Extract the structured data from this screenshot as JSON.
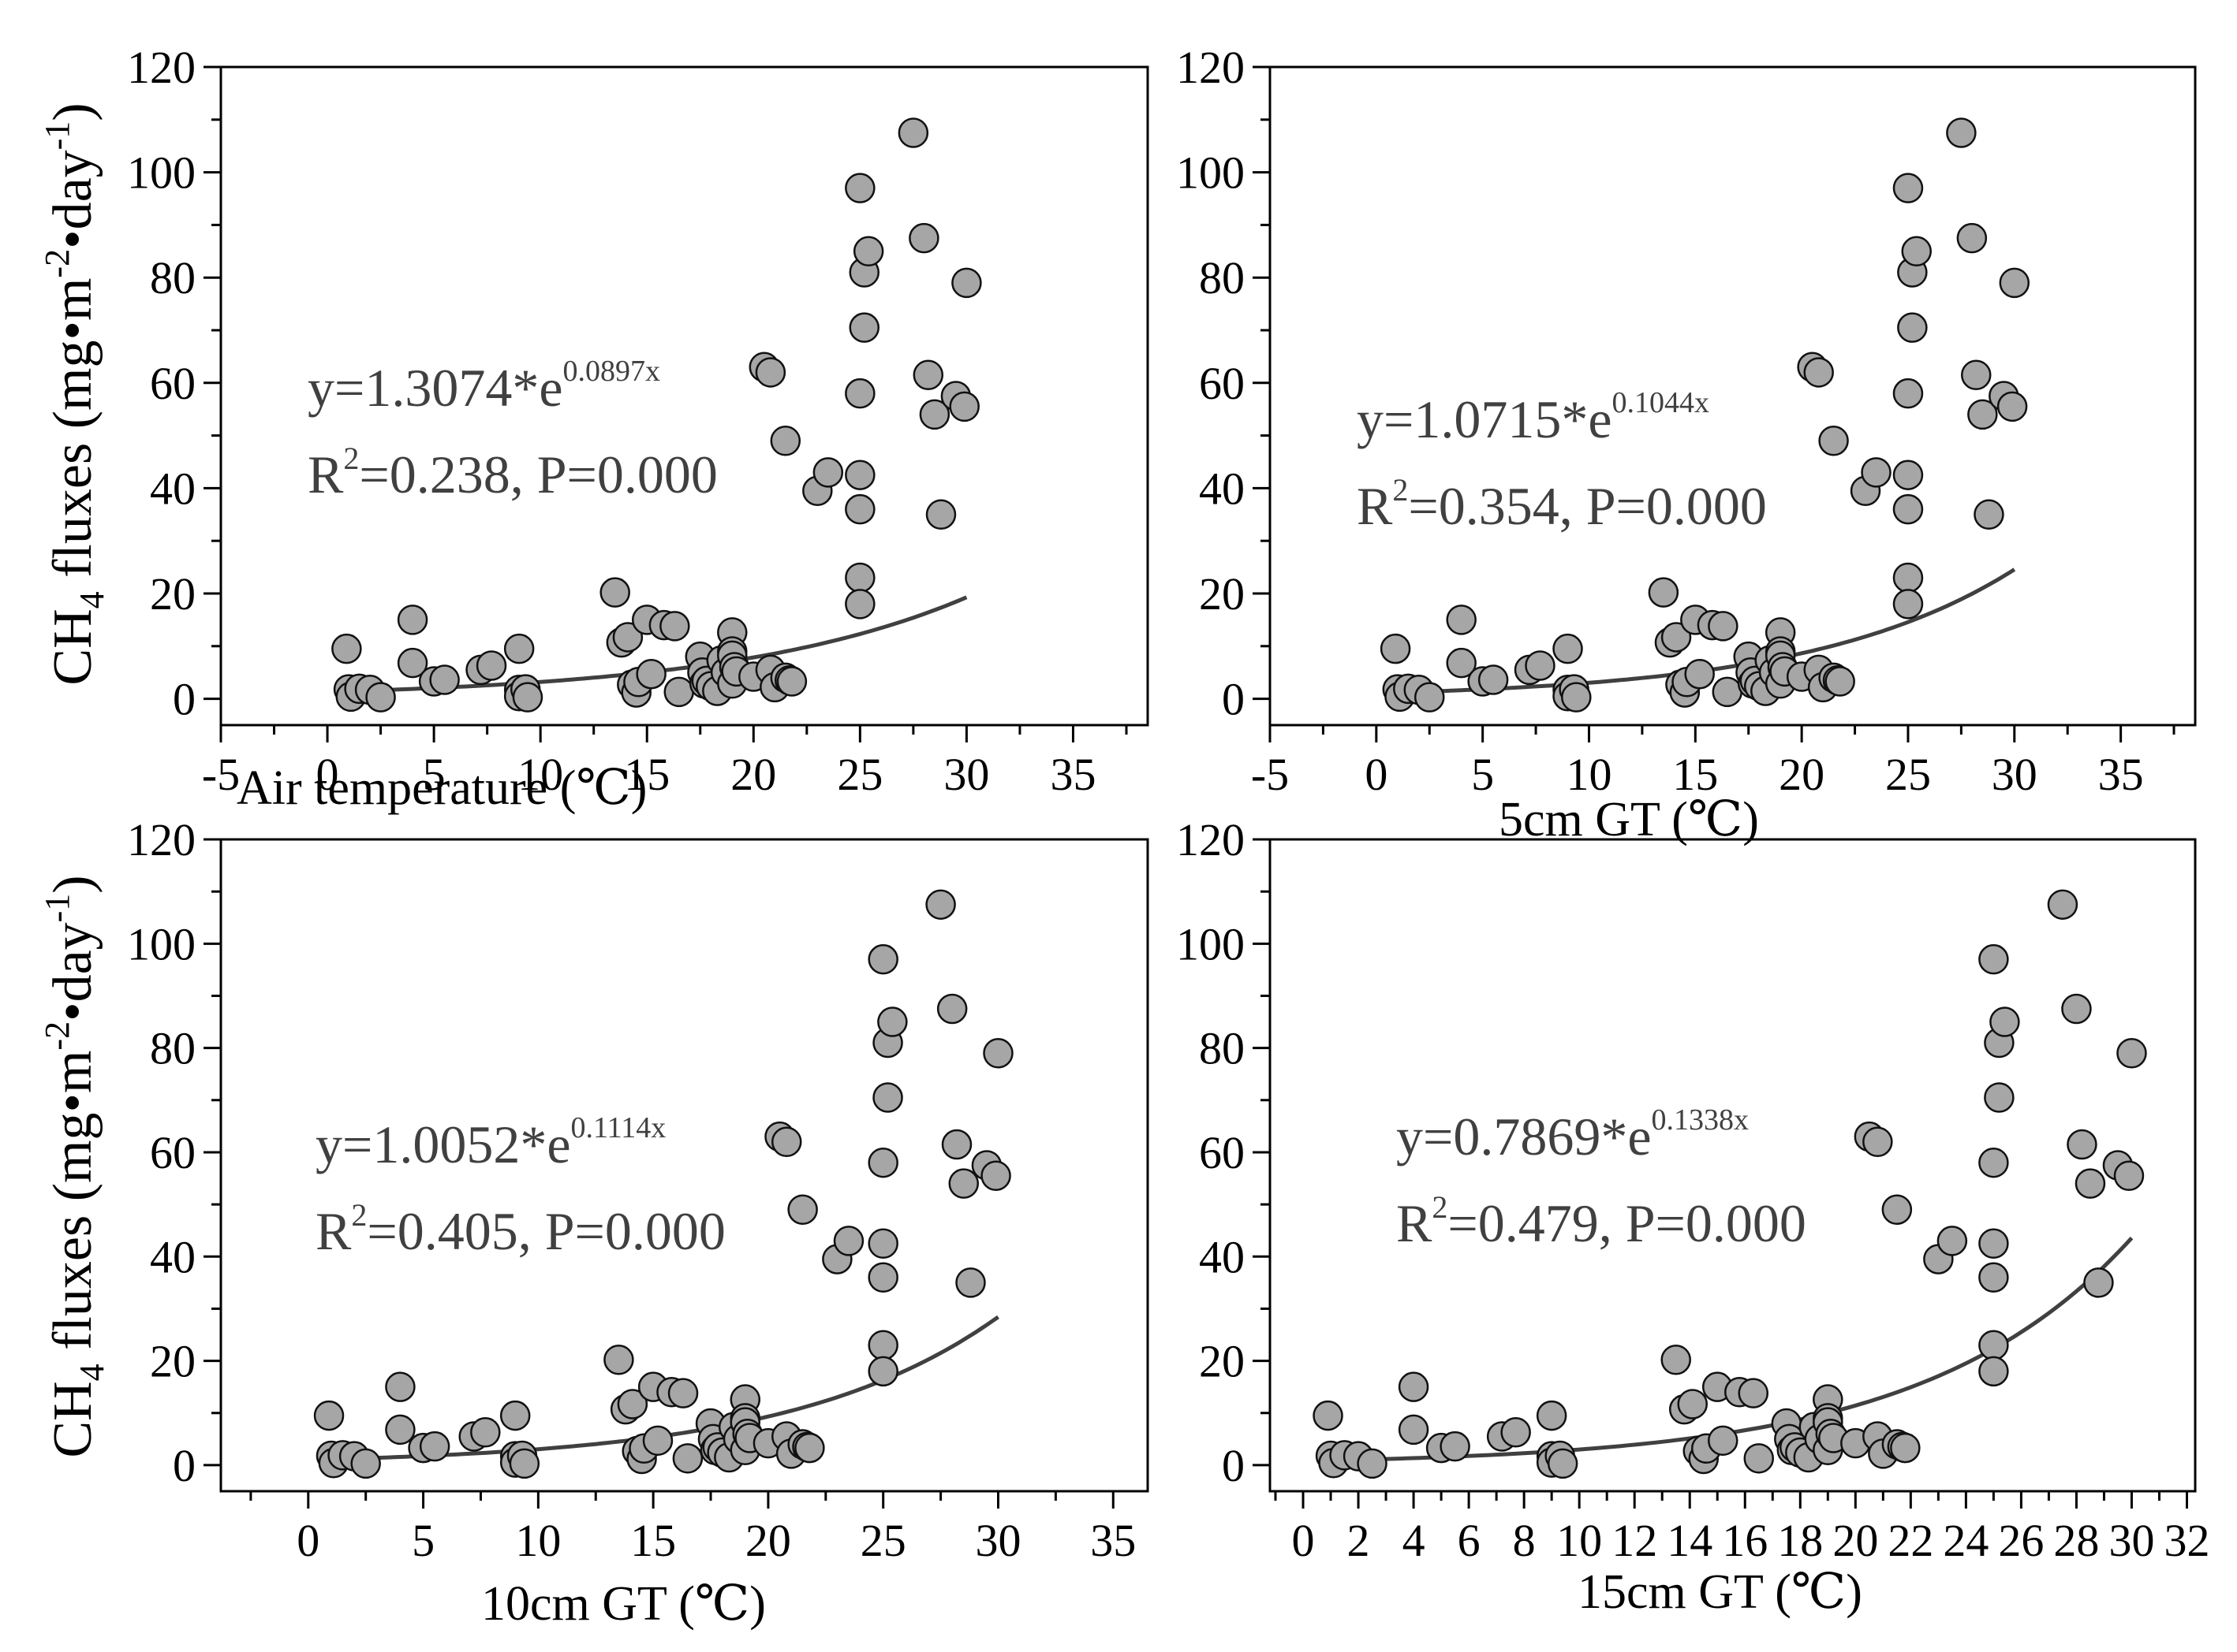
{
  "chart_data": [
    {
      "type": "scatter",
      "id": "air",
      "xlabel": "Air temperature (℃)",
      "ylabel": "CH4 fluxes (mg.m-2.day-1)",
      "ylabel_parts": {
        "base": "CH",
        "sub": "4",
        "mid": " fluxes (mg•m",
        "sup1": "-2",
        "mid2": "•day",
        "sup2": "-1",
        "end": ")"
      },
      "xlim": [
        -5,
        38.5
      ],
      "ylim": [
        -5,
        120
      ],
      "xticks": [
        -5,
        0,
        5,
        10,
        15,
        20,
        25,
        30,
        35
      ],
      "yticks": [
        0,
        20,
        40,
        60,
        80,
        100,
        120
      ],
      "fit": {
        "a": 1.3074,
        "b": 0.0897,
        "x_range": [
          1,
          30
        ]
      },
      "equation": {
        "base": "y=1.3074*e",
        "exp": "0.0897x"
      },
      "r2": {
        "pre": "R",
        "sup": "2",
        "post": "=0.238, P=0.000"
      },
      "points": [
        [
          0.9,
          9.5
        ],
        [
          1,
          1.8
        ],
        [
          1.1,
          0.4
        ],
        [
          1.5,
          1.9
        ],
        [
          2,
          1.7
        ],
        [
          2.5,
          0.3
        ],
        [
          4,
          15
        ],
        [
          4,
          6.8
        ],
        [
          5,
          3.3
        ],
        [
          5.5,
          3.6
        ],
        [
          7.2,
          5.5
        ],
        [
          7.7,
          6.3
        ],
        [
          9,
          9.5
        ],
        [
          9,
          1.7
        ],
        [
          9,
          0.5
        ],
        [
          9.3,
          1.8
        ],
        [
          9.4,
          0.3
        ],
        [
          13.5,
          20.2
        ],
        [
          13.8,
          10.7
        ],
        [
          14.1,
          11.7
        ],
        [
          14.3,
          2.7
        ],
        [
          14.5,
          1.2
        ],
        [
          14.6,
          3.2
        ],
        [
          15,
          15
        ],
        [
          15.2,
          4.7
        ],
        [
          15.8,
          14
        ],
        [
          16.3,
          13.8
        ],
        [
          16.5,
          1.3
        ],
        [
          17.5,
          8
        ],
        [
          17.6,
          5
        ],
        [
          17.7,
          2.9
        ],
        [
          17.8,
          3.4
        ],
        [
          18,
          2.4
        ],
        [
          18.3,
          1.5
        ],
        [
          18.5,
          7.3
        ],
        [
          18.7,
          5
        ],
        [
          19,
          12.6
        ],
        [
          19,
          9
        ],
        [
          19,
          2.9
        ],
        [
          19,
          8.2
        ],
        [
          19.1,
          6
        ],
        [
          19.2,
          5.2
        ],
        [
          20,
          4.2
        ],
        [
          20.5,
          63
        ],
        [
          20.8,
          62
        ],
        [
          20.8,
          5.5
        ],
        [
          21,
          2.2
        ],
        [
          21.5,
          4
        ],
        [
          21.5,
          49
        ],
        [
          21.7,
          3.5
        ],
        [
          21.8,
          3.3
        ],
        [
          23,
          39.5
        ],
        [
          23.5,
          43
        ],
        [
          25,
          97
        ],
        [
          25,
          58
        ],
        [
          25,
          42.5
        ],
        [
          25,
          36
        ],
        [
          25,
          23
        ],
        [
          25,
          18
        ],
        [
          25.2,
          81
        ],
        [
          25.2,
          70.5
        ],
        [
          25.4,
          85
        ],
        [
          27.5,
          107.5
        ],
        [
          28,
          87.5
        ],
        [
          28.2,
          61.5
        ],
        [
          28.5,
          54
        ],
        [
          28.8,
          35
        ],
        [
          29.5,
          57.5
        ],
        [
          29.9,
          55.5
        ],
        [
          30,
          79
        ]
      ]
    },
    {
      "type": "scatter",
      "id": "gt5",
      "xlabel": "5cm GT (℃)",
      "xlim": [
        -5,
        38.5
      ],
      "ylim": [
        -5,
        120
      ],
      "xticks": [
        -5,
        0,
        5,
        10,
        15,
        20,
        25,
        30,
        35
      ],
      "yticks": [
        0,
        20,
        40,
        60,
        80,
        100,
        120
      ],
      "fit": {
        "a": 1.0715,
        "b": 0.1044,
        "x_range": [
          1,
          30
        ]
      },
      "equation": {
        "base": "y=1.0715*e",
        "exp": "0.1044x"
      },
      "r2": {
        "pre": "R",
        "sup": "2",
        "post": "=0.354, P=0.000"
      },
      "points": [
        [
          0.9,
          9.5
        ],
        [
          1,
          1.8
        ],
        [
          1.1,
          0.4
        ],
        [
          1.5,
          1.9
        ],
        [
          2,
          1.7
        ],
        [
          2.5,
          0.3
        ],
        [
          4,
          15
        ],
        [
          4,
          6.8
        ],
        [
          5,
          3.3
        ],
        [
          5.5,
          3.6
        ],
        [
          7.2,
          5.5
        ],
        [
          7.7,
          6.3
        ],
        [
          9,
          9.5
        ],
        [
          9,
          1.7
        ],
        [
          9,
          0.5
        ],
        [
          9.3,
          1.8
        ],
        [
          9.4,
          0.3
        ],
        [
          13.5,
          20.2
        ],
        [
          13.8,
          10.7
        ],
        [
          14.1,
          11.7
        ],
        [
          14.3,
          2.7
        ],
        [
          14.5,
          1.2
        ],
        [
          14.6,
          3.2
        ],
        [
          15,
          15
        ],
        [
          15.2,
          4.7
        ],
        [
          15.8,
          14
        ],
        [
          16.3,
          13.8
        ],
        [
          16.5,
          1.3
        ],
        [
          17.5,
          8
        ],
        [
          17.6,
          5
        ],
        [
          17.7,
          2.9
        ],
        [
          17.8,
          3.4
        ],
        [
          18,
          2.4
        ],
        [
          18.3,
          1.5
        ],
        [
          18.5,
          7.3
        ],
        [
          18.7,
          5
        ],
        [
          19,
          12.6
        ],
        [
          19,
          9
        ],
        [
          19,
          2.9
        ],
        [
          19,
          8.2
        ],
        [
          19.1,
          6
        ],
        [
          19.2,
          5.2
        ],
        [
          20,
          4.2
        ],
        [
          20.5,
          63
        ],
        [
          20.8,
          62
        ],
        [
          20.8,
          5.5
        ],
        [
          21,
          2.2
        ],
        [
          21.5,
          4
        ],
        [
          21.5,
          49
        ],
        [
          21.7,
          3.5
        ],
        [
          21.8,
          3.3
        ],
        [
          23,
          39.5
        ],
        [
          23.5,
          43
        ],
        [
          25,
          97
        ],
        [
          25,
          58
        ],
        [
          25,
          42.5
        ],
        [
          25,
          36
        ],
        [
          25,
          23
        ],
        [
          25,
          18
        ],
        [
          25.2,
          81
        ],
        [
          25.2,
          70.5
        ],
        [
          25.4,
          85
        ],
        [
          27.5,
          107.5
        ],
        [
          28,
          87.5
        ],
        [
          28.2,
          61.5
        ],
        [
          28.5,
          54
        ],
        [
          28.8,
          35
        ],
        [
          29.5,
          57.5
        ],
        [
          29.9,
          55.5
        ],
        [
          30,
          79
        ]
      ]
    },
    {
      "type": "scatter",
      "id": "gt10",
      "xlabel": "10cm GT (℃)",
      "ylabel": "CH4 fluxes (mg.m-2.day-1)",
      "ylabel_parts": {
        "base": "CH",
        "sub": "4",
        "mid": " fluxes (mg•m",
        "sup1": "-2",
        "mid2": "•day",
        "sup2": "-1",
        "end": ")"
      },
      "xlim": [
        -3.8,
        36.5
      ],
      "ylim": [
        -5,
        120
      ],
      "xticks": [
        0,
        5,
        10,
        15,
        20,
        25,
        30,
        35
      ],
      "yticks": [
        0,
        20,
        40,
        60,
        80,
        100,
        120
      ],
      "fit": {
        "a": 1.0052,
        "b": 0.1114,
        "x_range": [
          1,
          30
        ]
      },
      "equation": {
        "base": "y=1.0052*e",
        "exp": "0.1114x"
      },
      "r2": {
        "pre": "R",
        "sup": "2",
        "post": "=0.405, P=0.000"
      },
      "points": [
        [
          0.9,
          9.5
        ],
        [
          1,
          1.8
        ],
        [
          1.1,
          0.4
        ],
        [
          1.5,
          1.9
        ],
        [
          2,
          1.7
        ],
        [
          2.5,
          0.3
        ],
        [
          4,
          15
        ],
        [
          4,
          6.8
        ],
        [
          5,
          3.3
        ],
        [
          5.5,
          3.6
        ],
        [
          7.2,
          5.5
        ],
        [
          7.7,
          6.3
        ],
        [
          9,
          9.5
        ],
        [
          9,
          1.7
        ],
        [
          9,
          0.5
        ],
        [
          9.3,
          1.8
        ],
        [
          9.4,
          0.3
        ],
        [
          13.5,
          20.2
        ],
        [
          13.8,
          10.7
        ],
        [
          14.1,
          11.7
        ],
        [
          14.3,
          2.7
        ],
        [
          14.5,
          1.2
        ],
        [
          14.6,
          3.2
        ],
        [
          15,
          15
        ],
        [
          15.2,
          4.7
        ],
        [
          15.8,
          14
        ],
        [
          16.3,
          13.8
        ],
        [
          16.5,
          1.3
        ],
        [
          17.5,
          8
        ],
        [
          17.6,
          5
        ],
        [
          17.7,
          2.9
        ],
        [
          17.8,
          3.4
        ],
        [
          18,
          2.4
        ],
        [
          18.3,
          1.5
        ],
        [
          18.5,
          7.3
        ],
        [
          18.7,
          5
        ],
        [
          19,
          12.6
        ],
        [
          19,
          9
        ],
        [
          19,
          2.9
        ],
        [
          19,
          8.2
        ],
        [
          19.1,
          6
        ],
        [
          19.2,
          5.2
        ],
        [
          20,
          4.2
        ],
        [
          20.5,
          63
        ],
        [
          20.8,
          62
        ],
        [
          20.8,
          5.5
        ],
        [
          21,
          2.2
        ],
        [
          21.5,
          4
        ],
        [
          21.5,
          49
        ],
        [
          21.7,
          3.5
        ],
        [
          21.8,
          3.3
        ],
        [
          23,
          39.5
        ],
        [
          23.5,
          43
        ],
        [
          25,
          97
        ],
        [
          25,
          58
        ],
        [
          25,
          42.5
        ],
        [
          25,
          36
        ],
        [
          25,
          23
        ],
        [
          25,
          18
        ],
        [
          25.2,
          81
        ],
        [
          25.2,
          70.5
        ],
        [
          25.4,
          85
        ],
        [
          27.5,
          107.5
        ],
        [
          28,
          87.5
        ],
        [
          28.2,
          61.5
        ],
        [
          28.5,
          54
        ],
        [
          28.8,
          35
        ],
        [
          29.5,
          57.5
        ],
        [
          29.9,
          55.5
        ],
        [
          30,
          79
        ]
      ]
    },
    {
      "type": "scatter",
      "id": "gt15",
      "xlabel": "15cm GT (℃)",
      "xlim": [
        -1.2,
        32.3
      ],
      "ylim": [
        -5,
        120
      ],
      "xticks": [
        0,
        2,
        4,
        6,
        8,
        10,
        12,
        14,
        16,
        18,
        20,
        22,
        24,
        26,
        28,
        30,
        32
      ],
      "yticks": [
        0,
        20,
        40,
        60,
        80,
        100,
        120
      ],
      "fit": {
        "a": 0.7869,
        "b": 0.1338,
        "x_range": [
          1,
          30
        ]
      },
      "equation": {
        "base": "y=0.7869*e",
        "exp": "0.1338x"
      },
      "r2": {
        "pre": "R",
        "sup": "2",
        "post": "=0.479, P=0.000"
      },
      "points": [
        [
          0.9,
          9.5
        ],
        [
          1,
          1.8
        ],
        [
          1.1,
          0.4
        ],
        [
          1.5,
          1.9
        ],
        [
          2,
          1.7
        ],
        [
          2.5,
          0.3
        ],
        [
          4,
          15
        ],
        [
          4,
          6.8
        ],
        [
          5,
          3.3
        ],
        [
          5.5,
          3.6
        ],
        [
          7.2,
          5.5
        ],
        [
          7.7,
          6.3
        ],
        [
          9,
          9.5
        ],
        [
          9,
          1.7
        ],
        [
          9,
          0.5
        ],
        [
          9.3,
          1.8
        ],
        [
          9.4,
          0.3
        ],
        [
          13.5,
          20.2
        ],
        [
          13.8,
          10.7
        ],
        [
          14.1,
          11.7
        ],
        [
          14.3,
          2.7
        ],
        [
          14.5,
          1.2
        ],
        [
          14.6,
          3.2
        ],
        [
          15,
          15
        ],
        [
          15.2,
          4.7
        ],
        [
          15.8,
          14
        ],
        [
          16.3,
          13.8
        ],
        [
          16.5,
          1.3
        ],
        [
          17.5,
          8
        ],
        [
          17.6,
          5
        ],
        [
          17.7,
          2.9
        ],
        [
          17.8,
          3.4
        ],
        [
          18,
          2.4
        ],
        [
          18.3,
          1.5
        ],
        [
          18.5,
          7.3
        ],
        [
          18.7,
          5
        ],
        [
          19,
          12.6
        ],
        [
          19,
          9
        ],
        [
          19,
          2.9
        ],
        [
          19,
          8.2
        ],
        [
          19.1,
          6
        ],
        [
          19.2,
          5.2
        ],
        [
          20,
          4.2
        ],
        [
          20.5,
          63
        ],
        [
          20.8,
          62
        ],
        [
          20.8,
          5.5
        ],
        [
          21,
          2.2
        ],
        [
          21.5,
          4
        ],
        [
          21.5,
          49
        ],
        [
          21.7,
          3.5
        ],
        [
          21.8,
          3.3
        ],
        [
          23,
          39.5
        ],
        [
          23.5,
          43
        ],
        [
          25,
          97
        ],
        [
          25,
          58
        ],
        [
          25,
          42.5
        ],
        [
          25,
          36
        ],
        [
          25,
          23
        ],
        [
          25,
          18
        ],
        [
          25.2,
          81
        ],
        [
          25.2,
          70.5
        ],
        [
          25.4,
          85
        ],
        [
          27.5,
          107.5
        ],
        [
          28,
          87.5
        ],
        [
          28.2,
          61.5
        ],
        [
          28.5,
          54
        ],
        [
          28.8,
          35
        ],
        [
          29.5,
          57.5
        ],
        [
          29.9,
          55.5
        ],
        [
          30,
          79
        ]
      ]
    }
  ],
  "colors": {
    "marker_fill": "#a6a6a6",
    "marker_stroke": "#111111",
    "curve": "#404040",
    "axis": "#000000",
    "equation_text": "#404040"
  }
}
